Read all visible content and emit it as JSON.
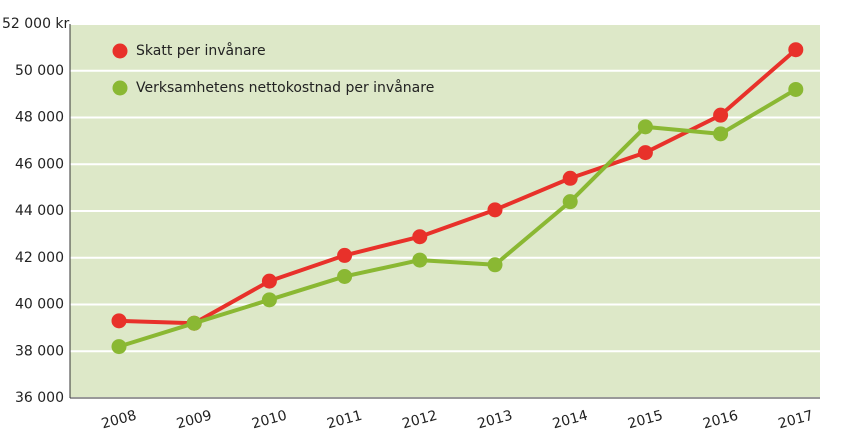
{
  "chart_data": {
    "type": "line",
    "categories": [
      "2008",
      "2009",
      "2010",
      "2011",
      "2012",
      "2013",
      "2014",
      "2015",
      "2016",
      "2017"
    ],
    "series": [
      {
        "name": "Skatt per invånare",
        "color": "#e8312a",
        "values": [
          39300,
          39200,
          41000,
          42100,
          42900,
          44050,
          45400,
          46500,
          48100,
          50900
        ]
      },
      {
        "name": "Verksamhetens nettokostnad per invånare",
        "color": "#8ab833",
        "values": [
          38200,
          39200,
          40200,
          41200,
          41900,
          41700,
          44400,
          47600,
          47300,
          49200
        ]
      }
    ],
    "ylim": [
      36000,
      52000
    ],
    "yticks": [
      {
        "value": 36000,
        "label": "36 000"
      },
      {
        "value": 38000,
        "label": "38 000"
      },
      {
        "value": 40000,
        "label": "40 000"
      },
      {
        "value": 42000,
        "label": "42 000"
      },
      {
        "value": 44000,
        "label": "44 000"
      },
      {
        "value": 46000,
        "label": "46 000"
      },
      {
        "value": 48000,
        "label": "48 000"
      },
      {
        "value": 50000,
        "label": "50 000"
      },
      {
        "value": 52000,
        "label": "52 000 kr"
      }
    ],
    "grid": true,
    "legend": "upper left",
    "background": "#dde8c8"
  }
}
